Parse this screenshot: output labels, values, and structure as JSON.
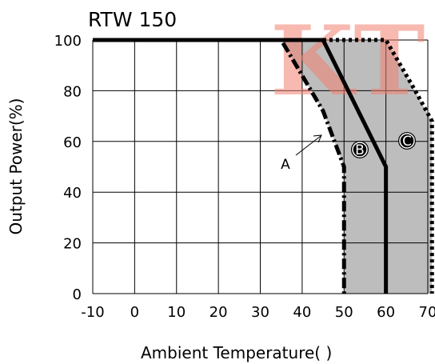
{
  "chart_data": {
    "type": "line",
    "title": "RTW 150",
    "xlabel": "Ambient Temperature(    )",
    "ylabel": "Output Power(%)",
    "xlim": [
      -10,
      70
    ],
    "ylim": [
      0,
      100
    ],
    "xticks": [
      -10,
      0,
      10,
      20,
      30,
      40,
      50,
      60,
      70
    ],
    "yticks": [
      0,
      20,
      40,
      60,
      80,
      100
    ],
    "grid": true,
    "watermark": "KT",
    "shaded_region": {
      "description": "gray band between curve A and curve C",
      "color": "#bdbdbd",
      "x": [
        35,
        45,
        50,
        50,
        71,
        71,
        60,
        50
      ],
      "y": [
        100,
        72,
        50,
        0,
        0,
        68,
        100,
        100
      ]
    },
    "series": [
      {
        "name": "A",
        "style": "dash-dot",
        "x": [
          -10,
          35,
          45,
          50,
          50
        ],
        "y": [
          100,
          100,
          72,
          50,
          0
        ]
      },
      {
        "name": "B",
        "style": "solid",
        "x": [
          -10,
          45,
          60,
          60
        ],
        "y": [
          100,
          100,
          50,
          0
        ]
      },
      {
        "name": "C",
        "style": "dotted",
        "x": [
          -10,
          60,
          67,
          71,
          71
        ],
        "y": [
          100,
          100,
          80,
          68,
          0
        ]
      }
    ],
    "curve_labels": [
      {
        "text": "A",
        "style": "plain"
      },
      {
        "text": "B",
        "style": "circled"
      },
      {
        "text": "C",
        "style": "circled"
      }
    ]
  }
}
